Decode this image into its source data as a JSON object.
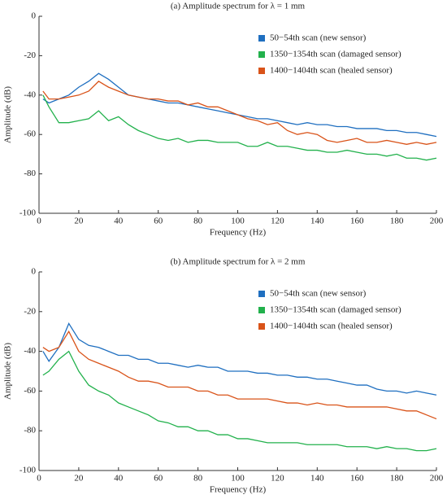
{
  "chart_data": [
    {
      "type": "line",
      "title": "(a) Amplitude spectrum for λ = 1 mm",
      "xlabel": "Frequency (Hz)",
      "ylabel": "Amplitude (dB)",
      "x": [
        2,
        5,
        10,
        15,
        20,
        25,
        30,
        35,
        40,
        45,
        50,
        55,
        60,
        65,
        70,
        75,
        80,
        85,
        90,
        95,
        100,
        105,
        110,
        115,
        120,
        125,
        130,
        135,
        140,
        145,
        150,
        155,
        160,
        165,
        170,
        175,
        180,
        185,
        190,
        195,
        200
      ],
      "series": [
        {
          "name": "50−54th scan (new sensor)",
          "color": "#1f6fc0",
          "values": [
            -42,
            -44,
            -42,
            -40,
            -36,
            -33,
            -29,
            -32,
            -36,
            -40,
            -41,
            -42,
            -43,
            -44,
            -44,
            -45,
            -46,
            -47,
            -48,
            -49,
            -50,
            -51,
            -52,
            -52,
            -53,
            -54,
            -55,
            -54,
            -55,
            -55,
            -56,
            -56,
            -57,
            -57,
            -57,
            -58,
            -58,
            -59,
            -59,
            -60,
            -61
          ]
        },
        {
          "name": "1350−1354th scan (damaged sensor)",
          "color": "#22b14c",
          "values": [
            -40,
            -46,
            -54,
            -54,
            -53,
            -52,
            -48,
            -53,
            -51,
            -55,
            -58,
            -60,
            -62,
            -63,
            -62,
            -64,
            -63,
            -63,
            -64,
            -64,
            -64,
            -66,
            -66,
            -64,
            -66,
            -66,
            -67,
            -68,
            -68,
            -69,
            -69,
            -68,
            -69,
            -70,
            -70,
            -71,
            -70,
            -72,
            -72,
            -73,
            -72
          ]
        },
        {
          "name": "1400−1404th scan (healed sensor)",
          "color": "#d95319",
          "values": [
            -38,
            -42,
            -42,
            -41,
            -40,
            -38,
            -33,
            -36,
            -38,
            -40,
            -41,
            -42,
            -42,
            -43,
            -43,
            -45,
            -44,
            -46,
            -46,
            -48,
            -50,
            -52,
            -53,
            -55,
            -54,
            -58,
            -60,
            -59,
            -60,
            -63,
            -64,
            -63,
            -62,
            -64,
            -64,
            -63,
            -64,
            -65,
            -64,
            -65,
            -64
          ]
        }
      ],
      "xlim": [
        0,
        200
      ],
      "xticks": [
        0,
        20,
        40,
        60,
        80,
        100,
        120,
        140,
        160,
        180,
        200
      ],
      "ylim": [
        -100,
        0
      ],
      "yticks": [
        -100,
        -80,
        -60,
        -40,
        -20,
        0
      ],
      "legend": "upper right"
    },
    {
      "type": "line",
      "title": "(b) Amplitude spectrum for λ = 2 mm",
      "xlabel": "Frequency (Hz)",
      "ylabel": "Amplitude (dB)",
      "x": [
        2,
        5,
        10,
        15,
        20,
        25,
        30,
        35,
        40,
        45,
        50,
        55,
        60,
        65,
        70,
        75,
        80,
        85,
        90,
        95,
        100,
        105,
        110,
        115,
        120,
        125,
        130,
        135,
        140,
        145,
        150,
        155,
        160,
        165,
        170,
        175,
        180,
        185,
        190,
        195,
        200
      ],
      "series": [
        {
          "name": "50−54th scan (new sensor)",
          "color": "#1f6fc0",
          "values": [
            -40,
            -45,
            -38,
            -26,
            -34,
            -37,
            -38,
            -40,
            -42,
            -42,
            -44,
            -44,
            -46,
            -46,
            -47,
            -48,
            -47,
            -48,
            -48,
            -50,
            -50,
            -50,
            -51,
            -51,
            -52,
            -52,
            -53,
            -53,
            -54,
            -54,
            -55,
            -56,
            -57,
            -57,
            -59,
            -60,
            -60,
            -61,
            -60,
            -61,
            -62
          ]
        },
        {
          "name": "1350−1354th scan (damaged sensor)",
          "color": "#22b14c",
          "values": [
            -52,
            -50,
            -44,
            -40,
            -50,
            -57,
            -60,
            -62,
            -66,
            -68,
            -70,
            -72,
            -75,
            -76,
            -78,
            -78,
            -80,
            -80,
            -82,
            -82,
            -84,
            -84,
            -85,
            -86,
            -86,
            -86,
            -86,
            -87,
            -87,
            -87,
            -87,
            -88,
            -88,
            -88,
            -89,
            -88,
            -89,
            -89,
            -90,
            -90,
            -89
          ]
        },
        {
          "name": "1400−1404th scan (healed sensor)",
          "color": "#d95319",
          "values": [
            -38,
            -40,
            -38,
            -30,
            -40,
            -44,
            -46,
            -48,
            -50,
            -53,
            -55,
            -55,
            -56,
            -58,
            -58,
            -58,
            -60,
            -60,
            -62,
            -62,
            -64,
            -64,
            -64,
            -64,
            -65,
            -66,
            -66,
            -67,
            -66,
            -67,
            -67,
            -68,
            -68,
            -68,
            -68,
            -68,
            -69,
            -70,
            -70,
            -72,
            -74
          ]
        }
      ],
      "xlim": [
        0,
        200
      ],
      "xticks": [
        0,
        20,
        40,
        60,
        80,
        100,
        120,
        140,
        160,
        180,
        200
      ],
      "ylim": [
        -100,
        0
      ],
      "yticks": [
        -100,
        -80,
        -60,
        -40,
        -20,
        0
      ],
      "legend": "upper right"
    }
  ]
}
